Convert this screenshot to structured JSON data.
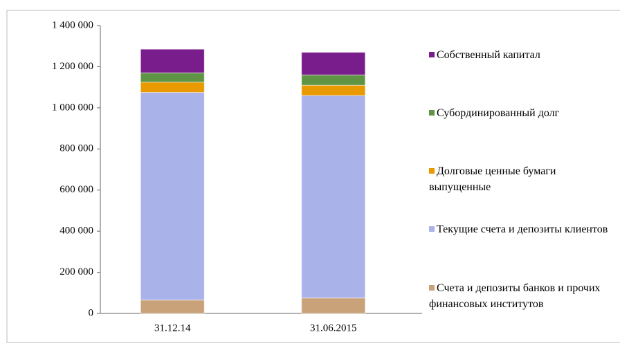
{
  "chart_data": {
    "type": "stacked-bar",
    "categories": [
      "31.12.14",
      "31.06.2015"
    ],
    "series": [
      {
        "name": "Счета и депозиты банков и прочих финансовых институтов",
        "color": "#c9a27a",
        "values": [
          65000,
          75000
        ]
      },
      {
        "name": "Текущие счета и депозиты клиентов",
        "color": "#aab2ea",
        "values": [
          1010000,
          985000
        ]
      },
      {
        "name": "Долговые ценные бумаги выпущенные",
        "color": "#e89a00",
        "values": [
          50000,
          50000
        ]
      },
      {
        "name": "Субординированный долг",
        "color": "#5e9444",
        "values": [
          45000,
          50000
        ]
      },
      {
        "name": "Собственный капитал",
        "color": "#7a1d8c",
        "values": [
          115000,
          110000
        ]
      }
    ],
    "ylim": [
      0,
      1400000
    ],
    "yticks": [
      0,
      {
        "value": 200000,
        "label": "200 000"
      },
      {
        "value": 400000,
        "label": "400 000"
      },
      {
        "value": 600000,
        "label": "600 000"
      },
      {
        "value": 800000,
        "label": "800 000"
      },
      {
        "value": 1000000,
        "label": "1 000 000"
      },
      {
        "value": 1200000,
        "label": "1 200 000"
      },
      {
        "value": 1400000,
        "label": "1 400 000"
      }
    ]
  }
}
